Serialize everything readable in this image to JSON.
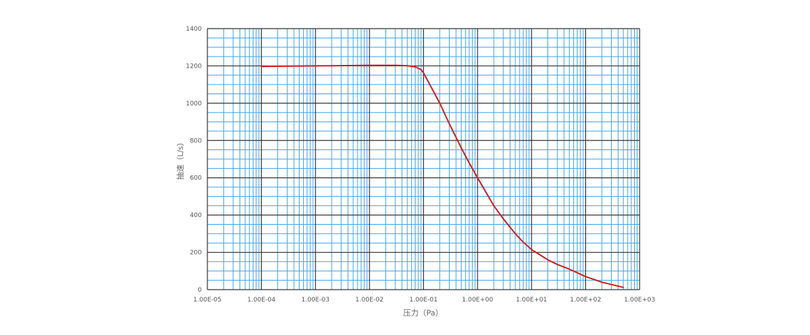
{
  "chart_data": {
    "type": "line",
    "title": "",
    "xlabel": "压力（Pa）",
    "ylabel": "抽速（L/s）",
    "x_scale": "log",
    "xlim": [
      1e-05,
      1000
    ],
    "ylim": [
      0,
      1400
    ],
    "x_ticks": [
      1e-05,
      0.0001,
      0.001,
      0.01,
      0.1,
      1,
      10,
      100,
      1000
    ],
    "x_tick_labels": [
      "1.00E-05",
      "1.00E-04",
      "1.00E-03",
      "1.00E-02",
      "1.00E-01",
      "1.00E+00",
      "1.00E+01",
      "1.00E+02",
      "1.00E+03"
    ],
    "y_ticks": [
      0,
      200,
      400,
      600,
      800,
      1000,
      1200,
      1400
    ],
    "y_tick_labels": [
      "0",
      "200",
      "400",
      "600",
      "800",
      "1000",
      "1200",
      "1400"
    ],
    "grid": true,
    "colors": {
      "minor_grid": "#3fa3e6",
      "major_grid": "#333333",
      "series": "#cc1f1f"
    },
    "series": [
      {
        "x": [
          0.0001,
          0.001,
          0.01,
          0.03,
          0.05,
          0.07,
          0.09,
          0.1,
          0.2,
          0.3,
          0.5,
          0.7,
          1,
          2,
          3,
          5,
          7,
          10,
          20,
          30,
          50,
          100,
          200,
          500
        ],
        "y": [
          1197,
          1200,
          1203,
          1203,
          1201,
          1195,
          1180,
          1163,
          1000,
          890,
          760,
          680,
          600,
          450,
          380,
          300,
          255,
          215,
          160,
          135,
          110,
          70,
          40,
          12
        ]
      }
    ]
  }
}
